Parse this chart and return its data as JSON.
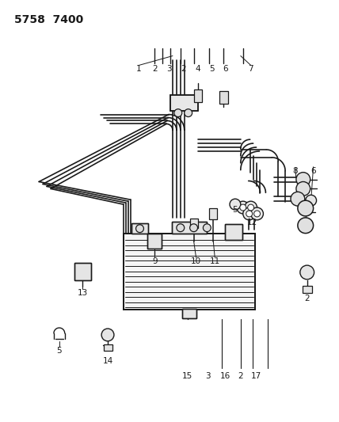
{
  "title": "5758  7400",
  "bg_color": "#ffffff",
  "lc": "#1a1a1a",
  "figsize": [
    4.28,
    5.33
  ],
  "dpi": 100,
  "title_fontsize": 10,
  "label_fontsize": 7.5
}
